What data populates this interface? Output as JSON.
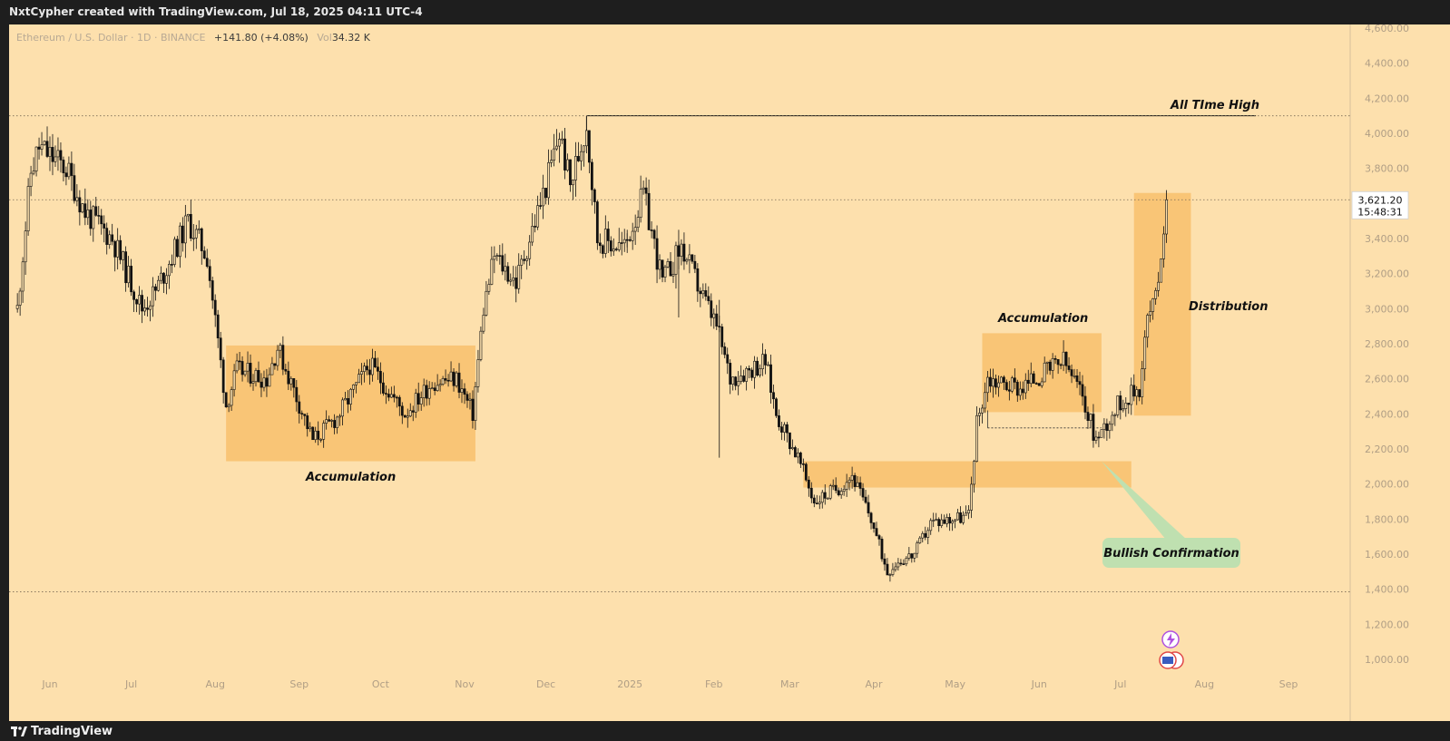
{
  "header": {
    "credit": "NxtCypher created with TradingView.com, Jul 18, 2025 04:11 UTC-4"
  },
  "symbol": {
    "name": "Ethereum / U.S. Dollar · 1D · BINANCE",
    "change": "+141.80 (+4.08%)",
    "vol_label": "Vol",
    "vol_value": "34.32 K"
  },
  "footer": {
    "brand": "TradingView"
  },
  "colors": {
    "background": "#fde0ad",
    "zone": "#f8bf6c",
    "bullish_label_bg": "#bfe0b0",
    "candle": "#111111"
  },
  "chart_data": {
    "type": "candlestick",
    "y_axis": {
      "range": [
        900,
        4700
      ],
      "ticks": [
        "4,600.00",
        "4,400.00",
        "4,200.00",
        "4,000.00",
        "3,800.00",
        "3,600.00",
        "3,400.00",
        "3,200.00",
        "3,000.00",
        "2,800.00",
        "2,600.00",
        "2,400.00",
        "2,200.00",
        "2,000.00",
        "1,800.00",
        "1,600.00",
        "1,400.00",
        "1,200.00",
        "1,000.00"
      ]
    },
    "x_axis": {
      "range": [
        "2025-05-20",
        "2025-09-20"
      ],
      "ticks": [
        {
          "label": "Jun",
          "date": "2024-06-01"
        },
        {
          "label": "Jul",
          "date": "2024-07-01"
        },
        {
          "label": "Aug",
          "date": "2024-08-01"
        },
        {
          "label": "Sep",
          "date": "2024-09-01"
        },
        {
          "label": "Oct",
          "date": "2024-10-01"
        },
        {
          "label": "Nov",
          "date": "2024-11-01"
        },
        {
          "label": "Dec",
          "date": "2024-12-01"
        },
        {
          "label": "2025",
          "date": "2025-01-01"
        },
        {
          "label": "Feb",
          "date": "2025-02-01"
        },
        {
          "label": "Mar",
          "date": "2025-03-01"
        },
        {
          "label": "Apr",
          "date": "2025-04-01"
        },
        {
          "label": "May",
          "date": "2025-05-01"
        },
        {
          "label": "Jun",
          "date": "2025-06-01"
        },
        {
          "label": "Jul",
          "date": "2025-07-01"
        },
        {
          "label": "Aug",
          "date": "2025-08-01"
        },
        {
          "label": "Sep",
          "date": "2025-09-01"
        }
      ]
    },
    "price_path": [
      [
        "2024-05-20",
        3000
      ],
      [
        "2024-05-25",
        3780
      ],
      [
        "2024-05-28",
        3920
      ],
      [
        "2024-06-07",
        3800
      ],
      [
        "2024-06-14",
        3550
      ],
      [
        "2024-06-24",
        3400
      ],
      [
        "2024-07-05",
        3000
      ],
      [
        "2024-07-10",
        3100
      ],
      [
        "2024-07-22",
        3500
      ],
      [
        "2024-07-29",
        3300
      ],
      [
        "2024-08-05",
        2450
      ],
      [
        "2024-08-09",
        2650
      ],
      [
        "2024-08-20",
        2600
      ],
      [
        "2024-08-24",
        2780
      ],
      [
        "2024-09-06",
        2250
      ],
      [
        "2024-09-15",
        2380
      ],
      [
        "2024-09-27",
        2680
      ],
      [
        "2024-10-10",
        2400
      ],
      [
        "2024-10-20",
        2580
      ],
      [
        "2024-10-29",
        2600
      ],
      [
        "2024-11-04",
        2400
      ],
      [
        "2024-11-08",
        3000
      ],
      [
        "2024-11-12",
        3300
      ],
      [
        "2024-11-20",
        3150
      ],
      [
        "2024-12-01",
        3700
      ],
      [
        "2024-12-06",
        4000
      ],
      [
        "2024-12-10",
        3700
      ],
      [
        "2024-12-16",
        4050
      ],
      [
        "2024-12-20",
        3400
      ],
      [
        "2024-12-30",
        3350
      ],
      [
        "2025-01-06",
        3650
      ],
      [
        "2025-01-13",
        3150
      ],
      [
        "2025-01-20",
        3350
      ],
      [
        "2025-01-27",
        3100
      ],
      [
        "2025-02-02",
        2900
      ],
      [
        "2025-02-07",
        2600
      ],
      [
        "2025-02-20",
        2700
      ],
      [
        "2025-02-24",
        2400
      ],
      [
        "2025-03-04",
        2150
      ],
      [
        "2025-03-10",
        1900
      ],
      [
        "2025-03-19",
        1980
      ],
      [
        "2025-03-24",
        2050
      ],
      [
        "2025-03-31",
        1800
      ],
      [
        "2025-04-06",
        1500
      ],
      [
        "2025-04-09",
        1550
      ],
      [
        "2025-04-16",
        1600
      ],
      [
        "2025-04-22",
        1780
      ],
      [
        "2025-05-06",
        1820
      ],
      [
        "2025-05-09",
        2350
      ],
      [
        "2025-05-13",
        2600
      ],
      [
        "2025-05-25",
        2550
      ],
      [
        "2025-06-10",
        2700
      ],
      [
        "2025-06-17",
        2500
      ],
      [
        "2025-06-22",
        2250
      ],
      [
        "2025-06-30",
        2450
      ],
      [
        "2025-07-08",
        2550
      ],
      [
        "2025-07-11",
        2950
      ],
      [
        "2025-07-14",
        3050
      ],
      [
        "2025-07-18",
        3621
      ]
    ],
    "current_price": "3,621.20",
    "countdown": "15:48:31",
    "levels": [
      {
        "name": "all-time-high",
        "value": 4100,
        "style": "solid-black",
        "from": "2024-12-16",
        "to": "2025-08-20"
      },
      {
        "name": "ath-dotted",
        "value": 4100,
        "style": "dotted"
      },
      {
        "name": "low-dotted",
        "value": 1385,
        "style": "dotted"
      },
      {
        "name": "current-dotted",
        "value": 3621,
        "style": "dotted"
      }
    ],
    "zones": [
      {
        "name": "accumulation-zone-1",
        "from": "2024-08-05",
        "to": "2024-11-05",
        "low": 2130,
        "high": 2790
      },
      {
        "name": "support-zone",
        "from": "2025-03-06",
        "to": "2025-07-05",
        "low": 1980,
        "high": 2130
      },
      {
        "name": "accumulation-zone-2",
        "from": "2025-05-11",
        "to": "2025-06-24",
        "low": 2410,
        "high": 2860
      },
      {
        "name": "distribution-zone",
        "from": "2025-07-06",
        "to": "2025-07-27",
        "low": 2390,
        "high": 3660
      }
    ],
    "annotations": [
      {
        "name": "label-all-time-high",
        "text": "All TIme High"
      },
      {
        "name": "label-accumulation-1",
        "text": "Accumulation"
      },
      {
        "name": "label-accumulation-2",
        "text": "Accumulation"
      },
      {
        "name": "label-distribution",
        "text": "Distribution"
      },
      {
        "name": "label-bullish-confirmation",
        "text": "Bullish Confirmation"
      }
    ]
  }
}
